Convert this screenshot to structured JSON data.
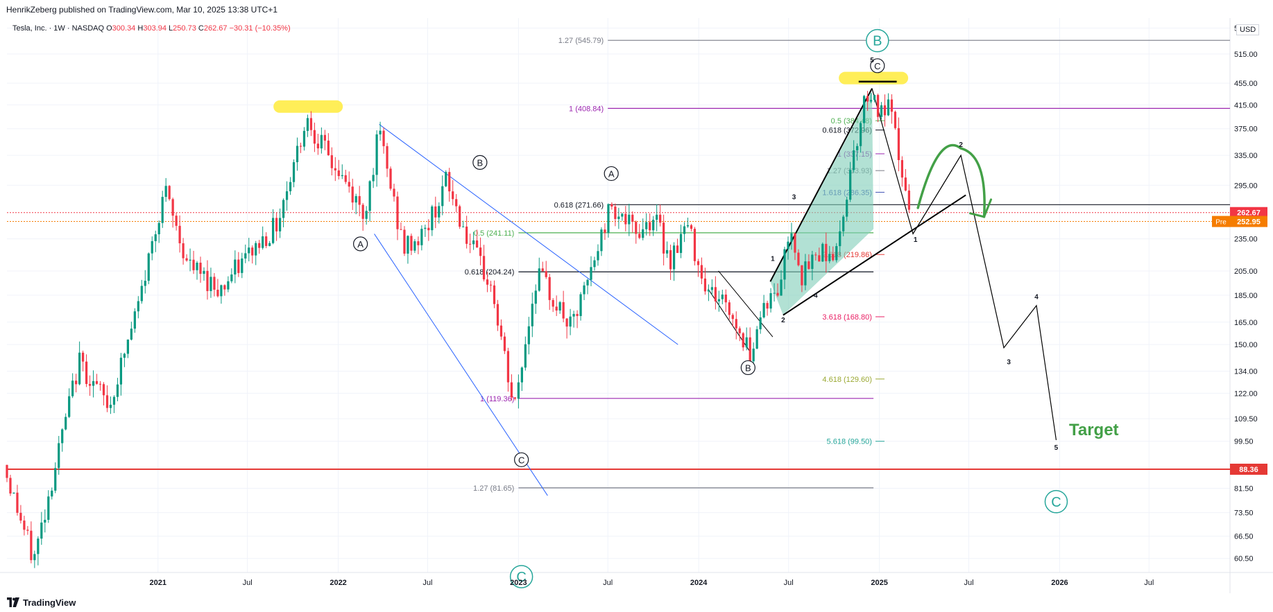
{
  "header": {
    "publisher": "HenrikZeberg published on TradingView.com, Mar 10, 2025 13:38 UTC+1"
  },
  "legend": {
    "symbol": "Tesla, Inc. · 1W · NASDAQ",
    "o_label": "O",
    "o": "300.34",
    "h_label": "H",
    "h": "303.94",
    "l_label": "L",
    "l": "250.73",
    "c_label": "C",
    "c": "262.67",
    "change": "−30.31 (−10.35%)"
  },
  "currency": "USD",
  "footer": {
    "brand": "TradingView"
  },
  "colors": {
    "up": "#089981",
    "down": "#f23645",
    "axis_text": "#131722",
    "grid": "#f0f3fa",
    "last_price": "#f23645",
    "pre_price": "#f57c00",
    "support": "#e53935",
    "trendline_blue": "#2962ff",
    "channel_fill": "#7ecdb8",
    "highlight": "#ffeb3b",
    "target_green": "#43a047"
  },
  "chart_data": {
    "type": "candlestick",
    "y_scale": "log",
    "ylim": [
      57,
      600
    ],
    "x_range": [
      "2020-03-01",
      "2026-12-12"
    ],
    "y_ticks": [
      "575.00",
      "515.00",
      "455.00",
      "415.00",
      "375.00",
      "335.00",
      "295.00",
      "235.00",
      "205.00",
      "185.00",
      "165.00",
      "150.00",
      "134.00",
      "122.00",
      "109.50",
      "99.50",
      "81.50",
      "73.50",
      "66.50",
      "60.50"
    ],
    "x_ticks": [
      {
        "label": "2021",
        "date": "2021-01-01",
        "bold": true
      },
      {
        "label": "Jul",
        "date": "2021-07-01",
        "bold": false
      },
      {
        "label": "2022",
        "date": "2022-01-01",
        "bold": true
      },
      {
        "label": "Jul",
        "date": "2022-07-01",
        "bold": false
      },
      {
        "label": "2023",
        "date": "2023-01-01",
        "bold": true
      },
      {
        "label": "Jul",
        "date": "2023-07-01",
        "bold": false
      },
      {
        "label": "2024",
        "date": "2024-01-01",
        "bold": true
      },
      {
        "label": "Jul",
        "date": "2024-07-01",
        "bold": false
      },
      {
        "label": "2025",
        "date": "2025-01-01",
        "bold": true
      },
      {
        "label": "Jul",
        "date": "2025-07-01",
        "bold": false
      },
      {
        "label": "2026",
        "date": "2026-01-01",
        "bold": true
      },
      {
        "label": "Jul",
        "date": "2026-07-01",
        "bold": false
      }
    ],
    "price_path": [
      [
        "2020-03-01",
        90
      ],
      [
        "2020-05-01",
        60
      ],
      [
        "2020-08-01",
        140
      ],
      [
        "2020-10-01",
        115
      ],
      [
        "2020-12-01",
        180
      ],
      [
        "2021-01-20",
        290
      ],
      [
        "2021-03-10",
        210
      ],
      [
        "2021-05-15",
        190
      ],
      [
        "2021-07-10",
        220
      ],
      [
        "2021-09-05",
        250
      ],
      [
        "2021-11-05",
        395
      ],
      [
        "2021-12-20",
        330
      ],
      [
        "2022-01-20",
        300
      ],
      [
        "2022-03-01",
        260
      ],
      [
        "2022-04-01",
        370
      ],
      [
        "2022-05-20",
        225
      ],
      [
        "2022-07-01",
        240
      ],
      [
        "2022-08-15",
        300
      ],
      [
        "2022-10-01",
        230
      ],
      [
        "2022-11-15",
        190
      ],
      [
        "2022-12-30",
        113
      ],
      [
        "2023-02-15",
        205
      ],
      [
        "2023-03-15",
        185
      ],
      [
        "2023-04-25",
        160
      ],
      [
        "2023-06-01",
        200
      ],
      [
        "2023-07-15",
        275
      ],
      [
        "2023-09-01",
        240
      ],
      [
        "2023-10-10",
        260
      ],
      [
        "2023-11-10",
        215
      ],
      [
        "2023-12-15",
        250
      ],
      [
        "2024-01-25",
        190
      ],
      [
        "2024-03-01",
        180
      ],
      [
        "2024-04-20",
        145
      ],
      [
        "2024-05-20",
        180
      ],
      [
        "2024-06-15",
        185
      ],
      [
        "2024-07-12",
        250
      ],
      [
        "2024-08-05",
        200
      ],
      [
        "2024-09-10",
        225
      ],
      [
        "2024-10-15",
        220
      ],
      [
        "2024-11-10",
        320
      ],
      [
        "2024-12-17",
        450
      ],
      [
        "2025-01-10",
        395
      ],
      [
        "2025-01-27",
        410
      ],
      [
        "2025-02-15",
        340
      ],
      [
        "2025-03-08",
        262
      ]
    ],
    "last_price": 262.67,
    "pre_price": 252.95,
    "pre_label": "Pre",
    "support_price": 88.36,
    "horizontal_levels": [
      {
        "label": "1.27 (545.79)",
        "price": 545.79,
        "color": "#787b86",
        "from": "2023-07-01",
        "to": "2026-12-12"
      },
      {
        "label": "1 (408.84)",
        "price": 408.84,
        "color": "#9c27b0",
        "from": "2023-07-01",
        "to": "2026-12-12"
      },
      {
        "label": "0.618 (271.66)",
        "price": 271.66,
        "color": "#131722",
        "from": "2023-07-01",
        "to": "2026-12-12"
      },
      {
        "label": "0.5 (241.11)",
        "price": 241.11,
        "color": "#4caf50",
        "from": "2023-01-01",
        "to": "2024-12-20"
      },
      {
        "label": "0.618 (204.24)",
        "price": 204.24,
        "color": "#131722",
        "from": "2023-01-01",
        "to": "2024-12-20"
      },
      {
        "label": "1 (119.36)",
        "price": 119.36,
        "color": "#9c27b0",
        "from": "2023-01-01",
        "to": "2024-12-20"
      },
      {
        "label": "1.27 (81.65)",
        "price": 81.65,
        "color": "#787b86",
        "from": "2023-01-01",
        "to": "2024-12-20"
      }
    ],
    "fib_labels": [
      {
        "label": "0.5 (384.48)",
        "price": 388,
        "color": "#4caf50",
        "date": "2024-12-17"
      },
      {
        "label": "0.618 (372.96)",
        "price": 372.96,
        "color": "#131722",
        "date": "2024-12-17"
      },
      {
        "label": "1 (337.15)",
        "price": 337.15,
        "color": "#9c27b0",
        "date": "2024-12-17"
      },
      {
        "label": "1.27 (313.93)",
        "price": 313.93,
        "color": "#787b86",
        "date": "2024-12-17"
      },
      {
        "label": "1.618 (286.35)",
        "price": 286.35,
        "color": "#3f51b5",
        "date": "2024-12-17"
      },
      {
        "label": "2.618 (219.86)",
        "price": 219.86,
        "color": "#e53935",
        "date": "2024-12-17"
      },
      {
        "label": "3.618 (168.80)",
        "price": 168.8,
        "color": "#e91e63",
        "date": "2024-12-17"
      },
      {
        "label": "4.618 (129.60)",
        "price": 129.6,
        "color": "#9aa832",
        "date": "2024-12-17"
      },
      {
        "label": "5.618 (99.50)",
        "price": 99.5,
        "color": "#26a69a",
        "date": "2024-12-17"
      }
    ],
    "circle_labels": [
      {
        "label": "A",
        "date": "2022-02-15",
        "price": 230
      },
      {
        "label": "B",
        "date": "2022-10-15",
        "price": 325
      },
      {
        "label": "C",
        "date": "2023-01-07",
        "price": 92
      },
      {
        "label": "A",
        "date": "2023-07-08",
        "price": 310
      },
      {
        "label": "B",
        "date": "2024-04-10",
        "price": 136
      },
      {
        "label": "C",
        "date": "2024-12-28",
        "price": 490
      }
    ],
    "big_labels": [
      {
        "label": "B",
        "date": "2024-12-28",
        "price": 545
      },
      {
        "label": "C",
        "date": "2025-12-25",
        "price": 77
      },
      {
        "label": "C",
        "date": "2023-01-07",
        "price": 56
      }
    ],
    "wave_numbers": [
      {
        "label": "1",
        "date": "2024-05-30",
        "price": 214
      },
      {
        "label": "2",
        "date": "2024-06-20",
        "price": 165
      },
      {
        "label": "3",
        "date": "2024-07-12",
        "price": 278
      },
      {
        "label": "4",
        "date": "2024-08-25",
        "price": 183
      },
      {
        "label": "5",
        "date": "2024-12-17",
        "price": 497
      },
      {
        "label": "1",
        "date": "2025-03-15",
        "price": 232
      },
      {
        "label": "2",
        "date": "2025-06-15",
        "price": 347
      },
      {
        "label": "3",
        "date": "2025-09-20",
        "price": 138
      },
      {
        "label": "4",
        "date": "2025-11-15",
        "price": 182
      },
      {
        "label": "5",
        "date": "2025-12-25",
        "price": 96
      }
    ],
    "projection_path": [
      [
        "2024-12-17",
        445
      ],
      [
        "2025-03-10",
        240
      ],
      [
        "2025-06-15",
        335
      ],
      [
        "2025-09-10",
        148
      ],
      [
        "2025-11-15",
        177
      ],
      [
        "2025-12-25",
        100
      ]
    ],
    "highlights": [
      {
        "date": "2021-11-01",
        "price": 412
      },
      {
        "date": "2024-12-20",
        "price": 465
      }
    ],
    "target_label": "Target"
  }
}
